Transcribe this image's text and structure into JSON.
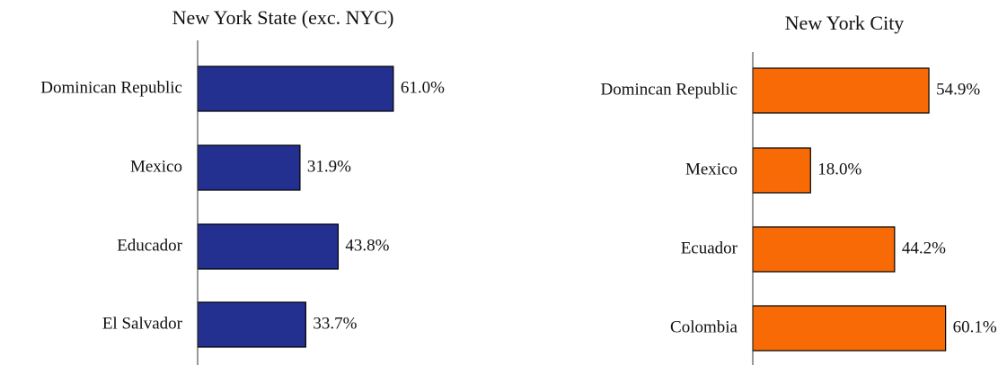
{
  "chart_data": [
    {
      "type": "bar",
      "orientation": "horizontal",
      "title": "New York State (exc. NYC)",
      "categories": [
        "Dominican Republic",
        "Mexico",
        "Educador",
        "El Salvador"
      ],
      "values": [
        61.0,
        31.9,
        43.8,
        33.7
      ],
      "value_labels": [
        "61.0%",
        "31.9%",
        "43.8%",
        "33.7%"
      ],
      "color": "#233090",
      "xlim": [
        0,
        70
      ]
    },
    {
      "type": "bar",
      "orientation": "horizontal",
      "title": "New York City",
      "categories": [
        "Domincan Republic",
        "Mexico",
        "Ecuador",
        "Colombia"
      ],
      "values": [
        54.9,
        18.0,
        44.2,
        60.1
      ],
      "value_labels": [
        "54.9%",
        "18.0%",
        "44.2%",
        "60.1%"
      ],
      "color": "#f76a05",
      "xlim": [
        0,
        70
      ]
    }
  ]
}
